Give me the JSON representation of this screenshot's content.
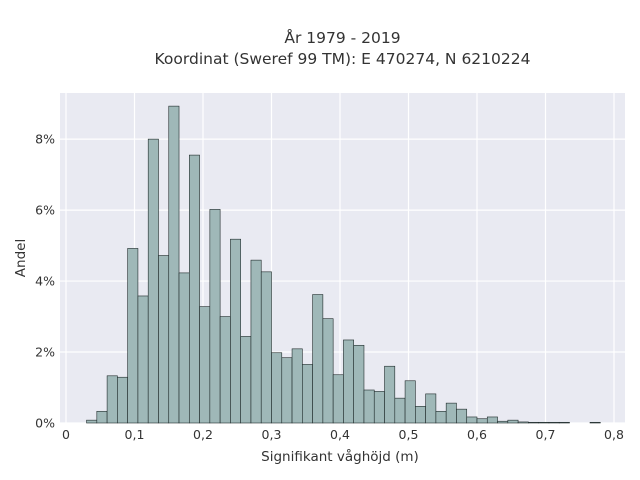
{
  "chart_data": {
    "type": "bar",
    "title": "År 1979 - 2019",
    "subtitle": "Koordinat (Sweref 99 TM): E 470274, N 6210224",
    "xlabel": "Signifikant våghöjd (m)",
    "ylabel": "Andel",
    "xlim": [
      0,
      0.8
    ],
    "ylim": [
      0,
      9.3
    ],
    "grid": true,
    "x_ticks": [
      {
        "value": 0,
        "label": "0"
      },
      {
        "value": 0.1,
        "label": "0,1"
      },
      {
        "value": 0.2,
        "label": "0,2"
      },
      {
        "value": 0.3,
        "label": "0,3"
      },
      {
        "value": 0.4,
        "label": "0,4"
      },
      {
        "value": 0.5,
        "label": "0,5"
      },
      {
        "value": 0.6,
        "label": "0,6"
      },
      {
        "value": 0.7,
        "label": "0,7"
      },
      {
        "value": 0.8,
        "label": "0,8"
      }
    ],
    "y_ticks": [
      {
        "value": 0,
        "label": "0%"
      },
      {
        "value": 2,
        "label": "2%"
      },
      {
        "value": 4,
        "label": "4%"
      },
      {
        "value": 6,
        "label": "6%"
      },
      {
        "value": 8,
        "label": "8%"
      }
    ],
    "bin_width": 0.015,
    "bin_start": 0.03,
    "values": [
      0.08,
      0.33,
      1.33,
      1.29,
      4.92,
      3.58,
      8.0,
      4.72,
      8.93,
      4.23,
      7.55,
      3.28,
      6.02,
      3.0,
      5.18,
      2.44,
      4.59,
      4.26,
      1.98,
      1.84,
      2.09,
      1.65,
      3.62,
      2.94,
      1.36,
      2.34,
      2.19,
      0.93,
      0.89,
      1.6,
      0.7,
      1.19,
      0.47,
      0.82,
      0.33,
      0.56,
      0.39,
      0.17,
      0.12,
      0.17,
      0.05,
      0.08,
      0.03,
      0.02,
      0.02,
      0.02,
      0.02,
      0,
      0,
      0.02
    ],
    "colors": {
      "background": "#e9eaf2",
      "grid": "#ffffff",
      "bar_fill": "#9fb8b8",
      "bar_edge": "#1f2a2a"
    }
  }
}
